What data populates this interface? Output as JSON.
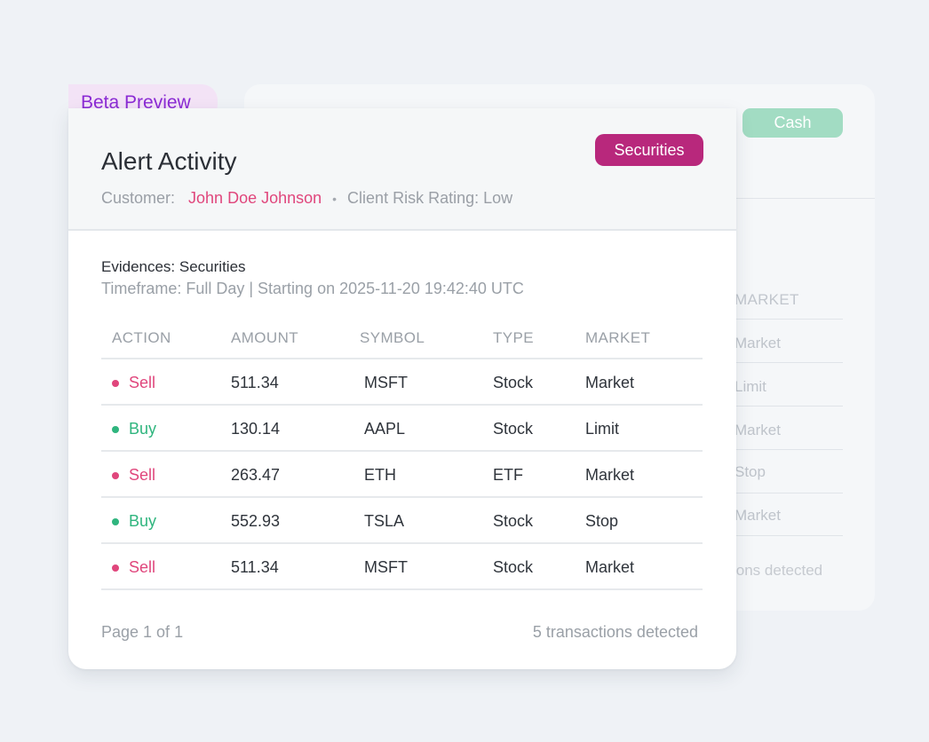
{
  "back_card": {
    "badge": "Cash",
    "column_header": "MARKET",
    "rows": [
      "Market",
      "Limit",
      "Market",
      "Stop",
      "Market"
    ],
    "footer": "ions detected"
  },
  "beta_tab": "Beta Preview",
  "card": {
    "title": "Alert Activity",
    "badge": "Securities",
    "customer_label": "Customer:",
    "customer_name": "John Doe Johnson",
    "risk_rating": "Client Risk Rating: Low",
    "evidence_title": "Evidences: Securities",
    "timeframe": "Timeframe: Full Day | Starting on 2025-11-20 19:42:40 UTC"
  },
  "table": {
    "headers": [
      "ACTION",
      "AMOUNT",
      "SYMBOL",
      "TYPE",
      "MARKET"
    ],
    "rows": [
      {
        "action": "Sell",
        "amount": "511.34",
        "symbol": "MSFT",
        "type": "Stock",
        "market": "Market"
      },
      {
        "action": "Buy",
        "amount": "130.14",
        "symbol": "AAPL",
        "type": "Stock",
        "market": "Limit"
      },
      {
        "action": "Sell",
        "amount": "263.47",
        "symbol": "ETH",
        "type": "ETF",
        "market": "Market"
      },
      {
        "action": "Buy",
        "amount": "552.93",
        "symbol": "TSLA",
        "type": "Stock",
        "market": "Stop"
      },
      {
        "action": "Sell",
        "amount": "511.34",
        "symbol": "MSFT",
        "type": "Stock",
        "market": "Market"
      }
    ]
  },
  "footer": {
    "page": "Page 1 of 1",
    "count": "5 transactions detected"
  },
  "colors": {
    "sell": "#e0467c",
    "buy": "#2fb57e",
    "securities_badge": "#b8287c",
    "cash_badge": "#a2dcc3",
    "beta_text": "#8b2bd4"
  }
}
